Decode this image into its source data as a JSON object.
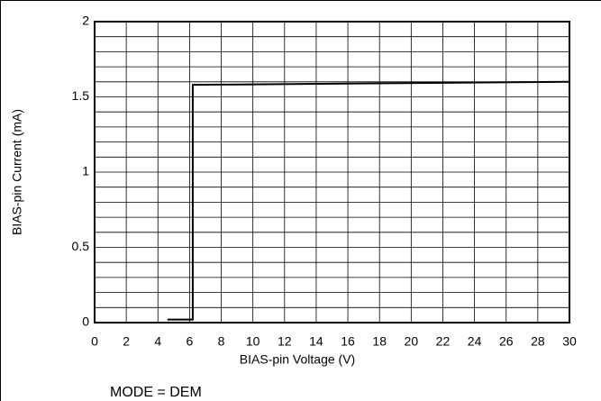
{
  "chart_data": {
    "type": "line",
    "xlabel": "BIAS-pin Voltage (V)",
    "ylabel": "BIAS-pin Current (mA)",
    "note": "MODE = DEM",
    "xlim": [
      0,
      30
    ],
    "xticks": [
      0,
      2,
      4,
      6,
      8,
      10,
      12,
      14,
      16,
      18,
      20,
      22,
      24,
      26,
      28,
      30
    ],
    "ylim": [
      0,
      2
    ],
    "yticks": [
      0,
      0.5,
      1,
      1.5,
      2
    ],
    "yminor_ticks": [
      0.1,
      0.2,
      0.3,
      0.4,
      0.6,
      0.7,
      0.8,
      0.9,
      1.1,
      1.2,
      1.3,
      1.4,
      1.6,
      1.7,
      1.8,
      1.9
    ],
    "grid": true,
    "series": [
      {
        "color": "#000000",
        "x": [
          4.6,
          6.2,
          6.2,
          30
        ],
        "values": [
          0.02,
          0.02,
          1.58,
          1.6
        ]
      }
    ]
  }
}
